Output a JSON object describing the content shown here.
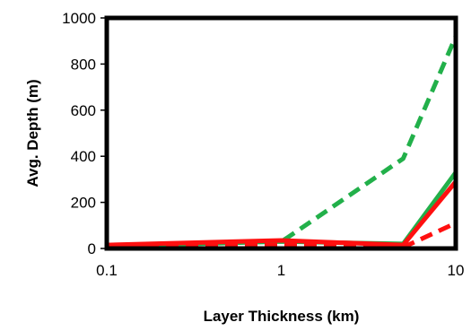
{
  "chart_data": {
    "type": "line",
    "title": "",
    "xlabel": "Layer Thickness (km)",
    "ylabel": "Avg. Depth (m)",
    "xscale": "log",
    "xlim": [
      0.1,
      10
    ],
    "ylim": [
      0,
      1000
    ],
    "xticks": [
      0.1,
      1,
      10
    ],
    "xtick_labels": [
      "0.1",
      "1",
      "10"
    ],
    "yticks": [
      0,
      200,
      400,
      600,
      800,
      1000
    ],
    "ytick_labels": [
      "0",
      "200",
      "400",
      "600",
      "800",
      "1000"
    ],
    "grid": false,
    "legend": "none",
    "series": [
      {
        "color": "#22b04a",
        "style": "dashed",
        "x": [
          0.1,
          1,
          1.1,
          5,
          10
        ],
        "y": [
          10,
          30,
          50,
          390,
          920
        ]
      },
      {
        "color": "#22b04a",
        "style": "solid",
        "x": [
          0.1,
          1,
          5,
          10
        ],
        "y": [
          10,
          30,
          20,
          330
        ]
      },
      {
        "color": "#ff1010",
        "style": "dashed",
        "x": [
          0.1,
          1,
          5,
          10
        ],
        "y": [
          5,
          15,
          5,
          110
        ]
      },
      {
        "color": "#ff1010",
        "style": "solid",
        "x": [
          0.1,
          1,
          5,
          10
        ],
        "y": [
          15,
          35,
          15,
          290
        ]
      }
    ]
  }
}
